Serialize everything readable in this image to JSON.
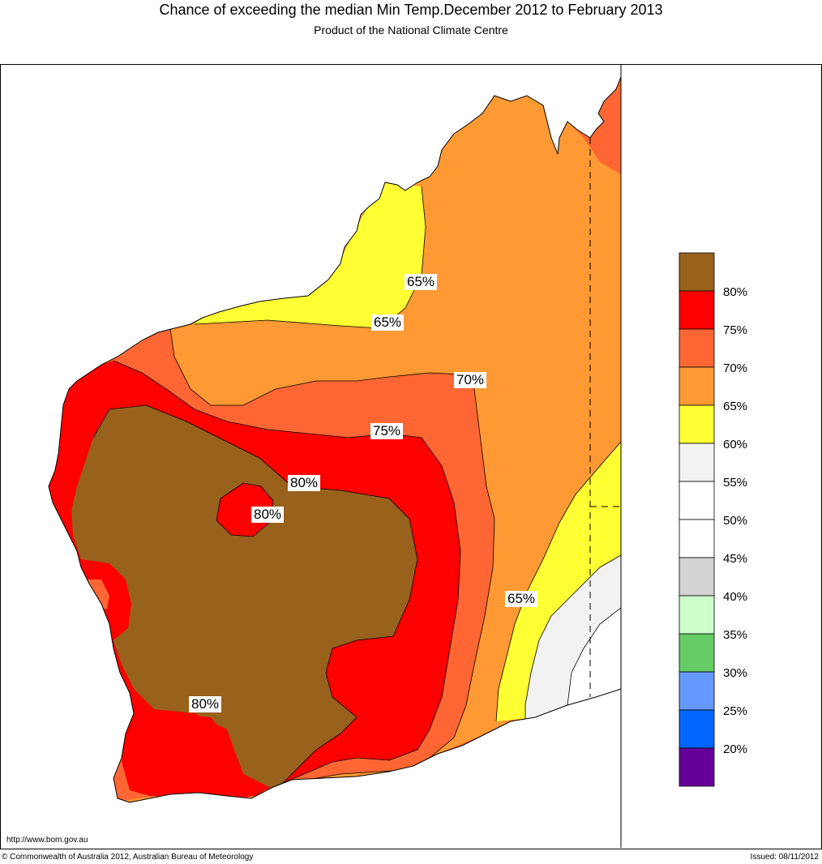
{
  "header": {
    "title": "Chance of exceeding the median Min Temp.December 2012 to February 2013",
    "subtitle": "Product of the National Climate Centre"
  },
  "colors": {
    "c80": "#98621c",
    "c75": "#ff0000",
    "c70": "#ff6633",
    "c65": "#ff9933",
    "c60": "#ffff33",
    "c55": "#f2f2f2",
    "c50": "#ffffff",
    "c45": "#ffffff",
    "c40": "#d3d3d3",
    "c35": "#ccffcc",
    "c30": "#66cc66",
    "c25": "#6699ff",
    "c20": "#0066ff",
    "c15": "#660099"
  },
  "legend": {
    "labels": [
      "80%",
      "75%",
      "70%",
      "65%",
      "60%",
      "55%",
      "50%",
      "45%",
      "40%",
      "35%",
      "30%",
      "25%",
      "20%"
    ]
  },
  "map_labels": {
    "north_a": "65%",
    "north_b": "65%",
    "east_70": "70%",
    "centre_75": "75%",
    "centre_80a": "80%",
    "centre_80b": "80%",
    "east_65": "65%",
    "south_80": "80%"
  },
  "footer": {
    "url": "http://www.bom.gov.au",
    "copyright": "© Commonwealth of Australia 2012, Australian Bureau of Meteorology",
    "issued": "Issued: 08/11/2012"
  }
}
